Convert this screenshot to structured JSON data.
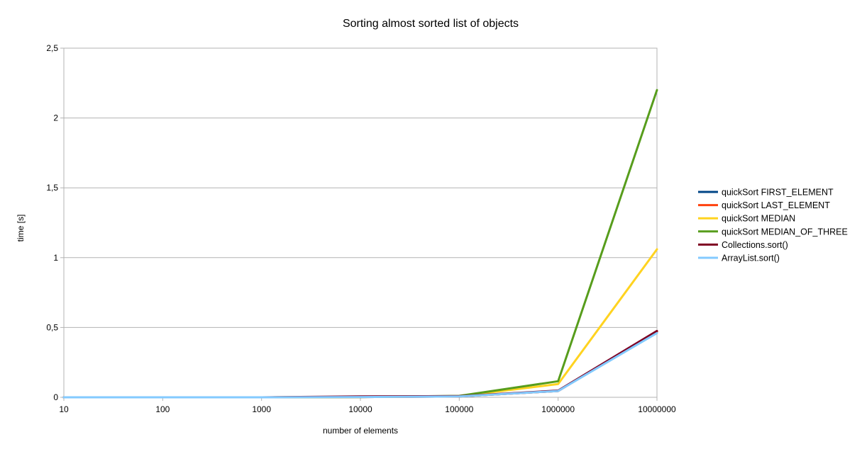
{
  "chart_data": {
    "type": "line",
    "title": "Sorting almost sorted list of objects",
    "xlabel": "number of elements",
    "ylabel": "time [s]",
    "x": [
      "10",
      "100",
      "1000",
      "10000",
      "100000",
      "1000000",
      "10000000"
    ],
    "ylim": [
      0,
      2.5
    ],
    "y_ticks": [
      "0",
      "0,5",
      "1",
      "1,5",
      "2",
      "2,5"
    ],
    "y_tick_values": [
      0,
      0.5,
      1,
      1.5,
      2,
      2.5
    ],
    "grid": true,
    "legend_position": "right",
    "series": [
      {
        "name": "quickSort FIRST_ELEMENT",
        "color": "#004586",
        "values": [
          0,
          0,
          0,
          0.002,
          0.006,
          0.045,
          0.47
        ]
      },
      {
        "name": "quickSort LAST_ELEMENT",
        "color": "#ff420e",
        "values": [
          0,
          0,
          0,
          0.002,
          0.006,
          0.045,
          0.47
        ]
      },
      {
        "name": "quickSort MEDIAN",
        "color": "#ffd320",
        "values": [
          0,
          0,
          0,
          0.002,
          0.008,
          0.095,
          1.06
        ]
      },
      {
        "name": "quickSort MEDIAN_OF_THREE",
        "color": "#579d1c",
        "values": [
          0,
          0,
          0,
          0.002,
          0.01,
          0.115,
          2.2
        ]
      },
      {
        "name": "Collections.sort()",
        "color": "#7e0021",
        "values": [
          0,
          0,
          0,
          0.006,
          0.008,
          0.048,
          0.475
        ]
      },
      {
        "name": "ArrayList.sort()",
        "color": "#83caff",
        "values": [
          0,
          0,
          0,
          0.002,
          0.006,
          0.045,
          0.46
        ]
      }
    ]
  }
}
